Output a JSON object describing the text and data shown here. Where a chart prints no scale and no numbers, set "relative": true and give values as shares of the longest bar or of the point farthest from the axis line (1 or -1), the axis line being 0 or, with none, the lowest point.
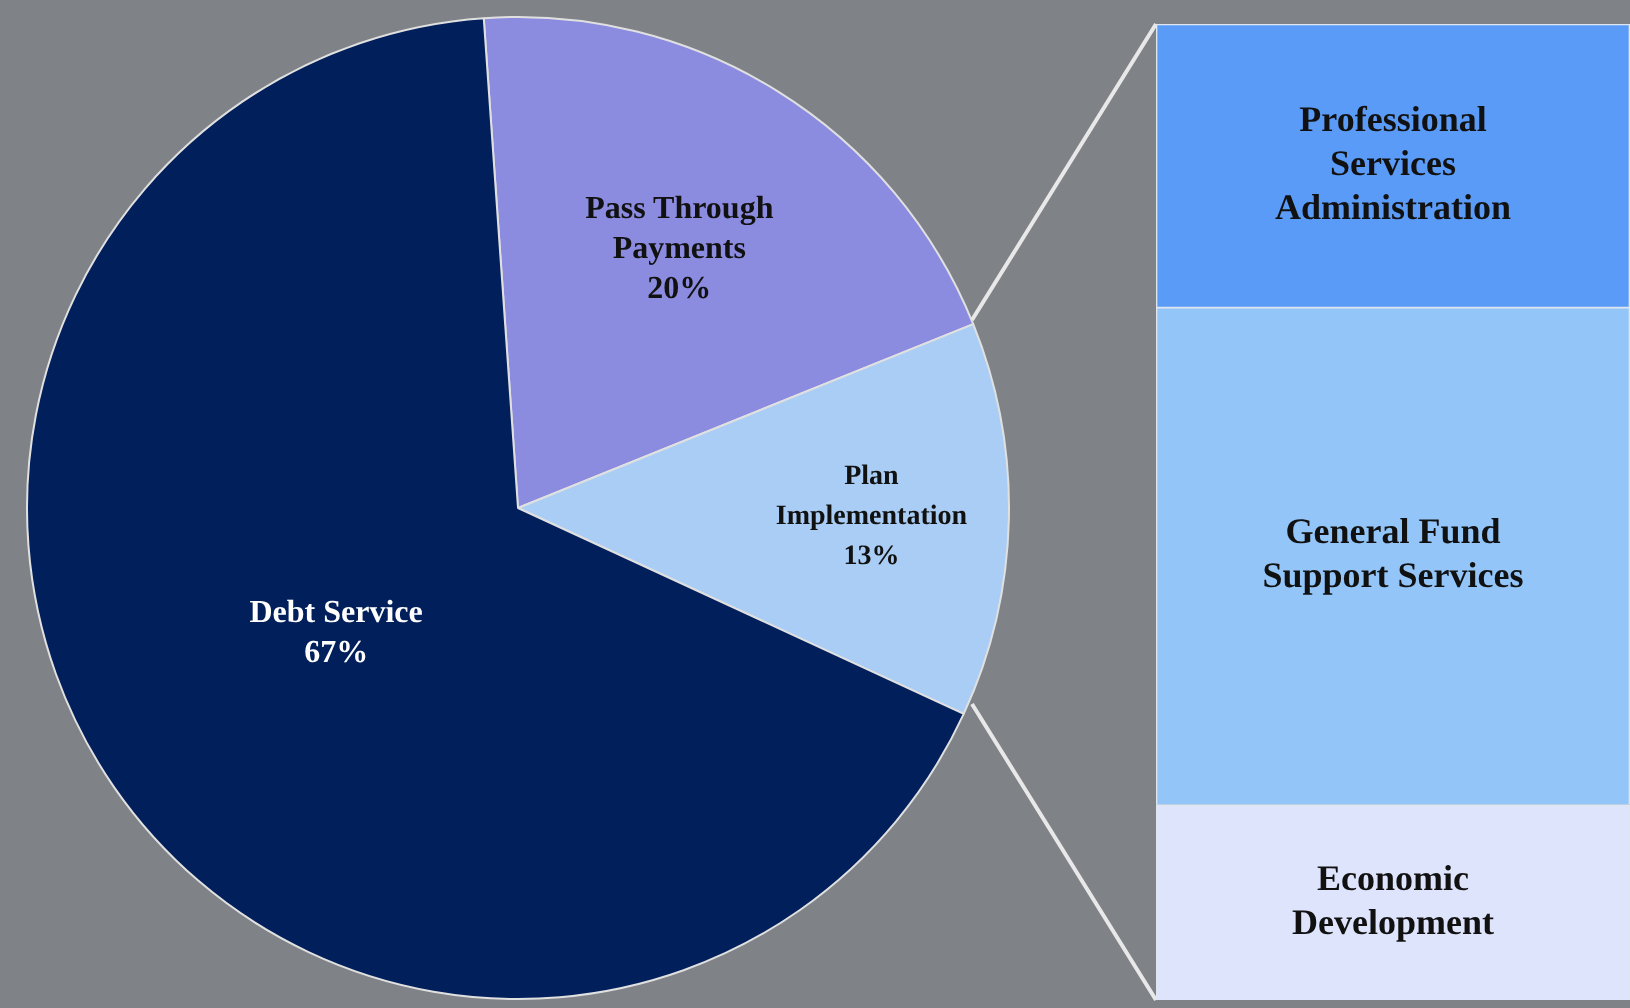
{
  "chart_data": [
    {
      "type": "pie",
      "categories": [
        "Pass Through Payments",
        "Plan Implementation",
        "Debt Service"
      ],
      "values": [
        20,
        13,
        67
      ],
      "colors": [
        "#8b8ce0",
        "#a9cdf4",
        "#001f5b"
      ],
      "value_labels": [
        "20%",
        "13%",
        "67%"
      ]
    },
    {
      "type": "bar",
      "stacked": true,
      "relative": true,
      "categories": [
        null
      ],
      "series": [
        {
          "name": "Economic Development",
          "color": "#dde4fb",
          "values": [
            0.2
          ]
        },
        {
          "name": "General Fund Support Services",
          "color": "#93c5f8",
          "values": [
            0.51
          ]
        },
        {
          "name": "Professional Services Administration",
          "color": "#5b9bf8",
          "values": [
            0.29
          ]
        }
      ]
    }
  ]
}
